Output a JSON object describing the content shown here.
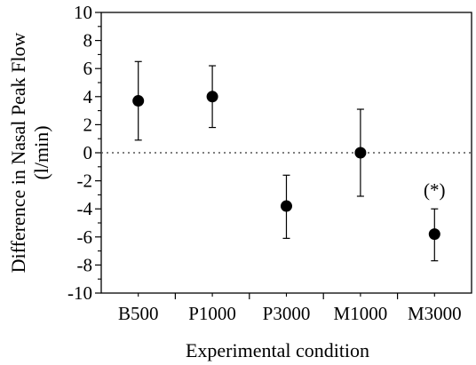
{
  "chart_data": {
    "type": "scatter",
    "categories": [
      "B500",
      "P1000",
      "P3000",
      "M1000",
      "M3000"
    ],
    "series": [
      {
        "values": [
          3.7,
          4.0,
          -3.8,
          0.0,
          -5.8
        ],
        "error_low": [
          0.9,
          1.8,
          -6.1,
          -3.1,
          -7.7
        ],
        "error_high": [
          6.5,
          6.2,
          -1.6,
          3.1,
          -4.0
        ]
      }
    ],
    "ylabel_line1": "Difference in Nasal Peak Flow",
    "ylabel_line2": "(l/min)",
    "xlabel": "Experimental condition",
    "ylim": [
      -10,
      10
    ],
    "yticks": [
      -10,
      -8,
      -6,
      -4,
      -2,
      0,
      2,
      4,
      6,
      8,
      10
    ],
    "ytick_labels": [
      "-10",
      "-8",
      "-6",
      "-4",
      "-2",
      "0",
      "2",
      "4",
      "6",
      "8",
      "10"
    ],
    "reference_line": 0,
    "grid": false,
    "annotations": [
      {
        "category": "M3000",
        "text": "(*)"
      }
    ],
    "colors": {
      "marker": "#000000",
      "axis": "#000000",
      "reference": "#555555"
    }
  }
}
